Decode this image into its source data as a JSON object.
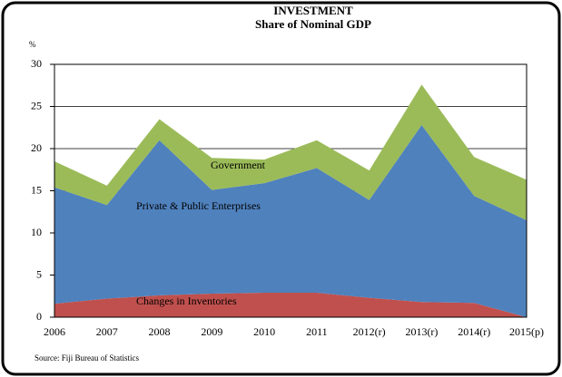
{
  "chart_data": {
    "type": "stacked_area",
    "title": "INVESTMENT",
    "subtitle": "Share of Nominal GDP",
    "y_label": "%",
    "source": "Source:  Fiji Bureau of Statistics",
    "categories": [
      "2006",
      "2007",
      "2008",
      "2009",
      "2010",
      "2011",
      "2012(r)",
      "2013(r)",
      "2014(r)",
      "2015(p)"
    ],
    "series": [
      {
        "name": "Changes in Inventories",
        "color": "#c0504d",
        "values": [
          1.6,
          2.2,
          2.6,
          2.8,
          2.9,
          2.9,
          2.3,
          1.8,
          1.7,
          0
        ]
      },
      {
        "name": "Private & Public Enterprises",
        "color": "#4f81bd",
        "values": [
          13.8,
          11.1,
          18.4,
          12.3,
          13.0,
          14.8,
          11.6,
          21.0,
          12.7,
          11.5
        ]
      },
      {
        "name": "Government",
        "color": "#9bbb59",
        "values": [
          3.1,
          2.3,
          2.5,
          3.8,
          2.8,
          3.3,
          3.5,
          4.8,
          4.6,
          4.8
        ]
      }
    ],
    "ylim": [
      0,
      30
    ],
    "yticks": [
      0,
      5,
      10,
      15,
      20,
      25,
      30
    ],
    "grid": true
  }
}
